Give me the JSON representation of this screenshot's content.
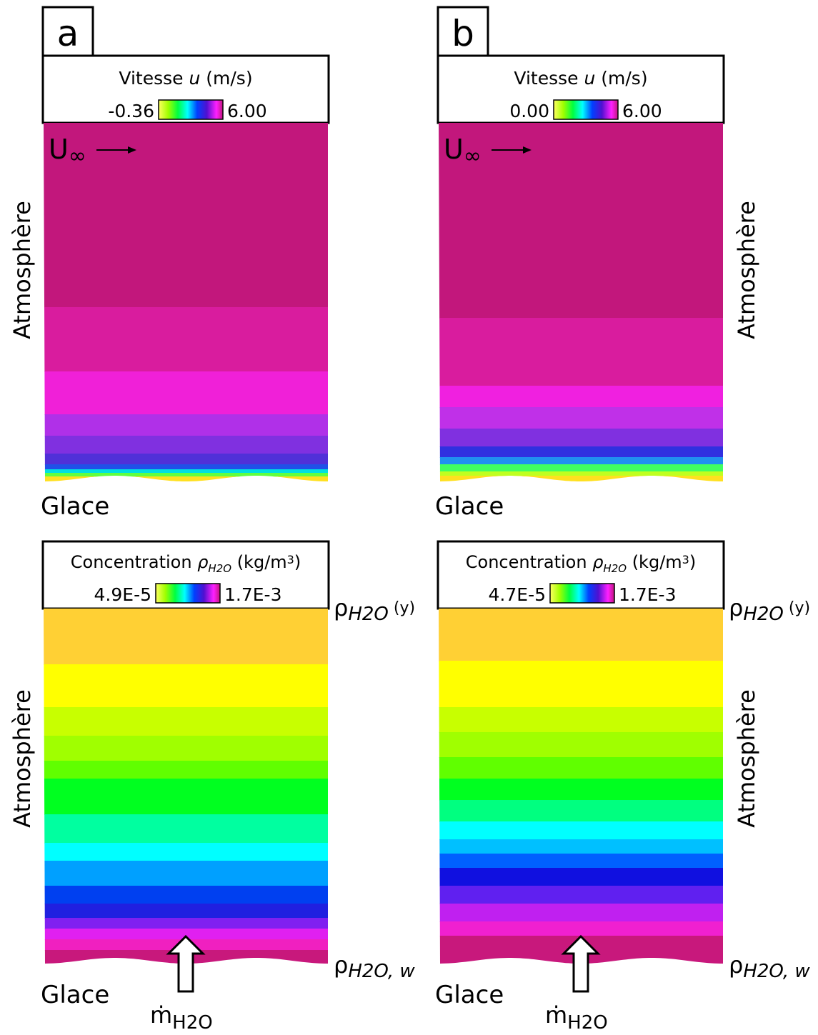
{
  "panels": [
    {
      "label": "a",
      "u_min": "-0.36",
      "u_max": "6.00",
      "c_min": "4.9E-5",
      "c_max": "1.7E-3"
    },
    {
      "label": "b",
      "u_min": "0.00",
      "u_max": "6.00",
      "c_min": "4.7E-5",
      "c_max": "1.7E-3"
    }
  ],
  "legends": {
    "velocity_title": "Vitesse ",
    "velocity_var": "u",
    "velocity_unit": " (m/s)",
    "concentration_title": "Concentration ",
    "concentration_symbol": "ρ",
    "concentration_sub": "H2O",
    "concentration_unit": " (kg/m",
    "concentration_exp": "3",
    "concentration_end": ")"
  },
  "annotations": {
    "freestream": "U",
    "freestream_sub": "∞",
    "atmosphere": "Atmosphère",
    "ice": "Glace",
    "rho": "ρ",
    "rho_sub": "H2O",
    "rho_y": " (y)",
    "rho_w_sub": "H2O, w",
    "mdot": "ṁ",
    "mdot_sub": "H2O"
  }
}
